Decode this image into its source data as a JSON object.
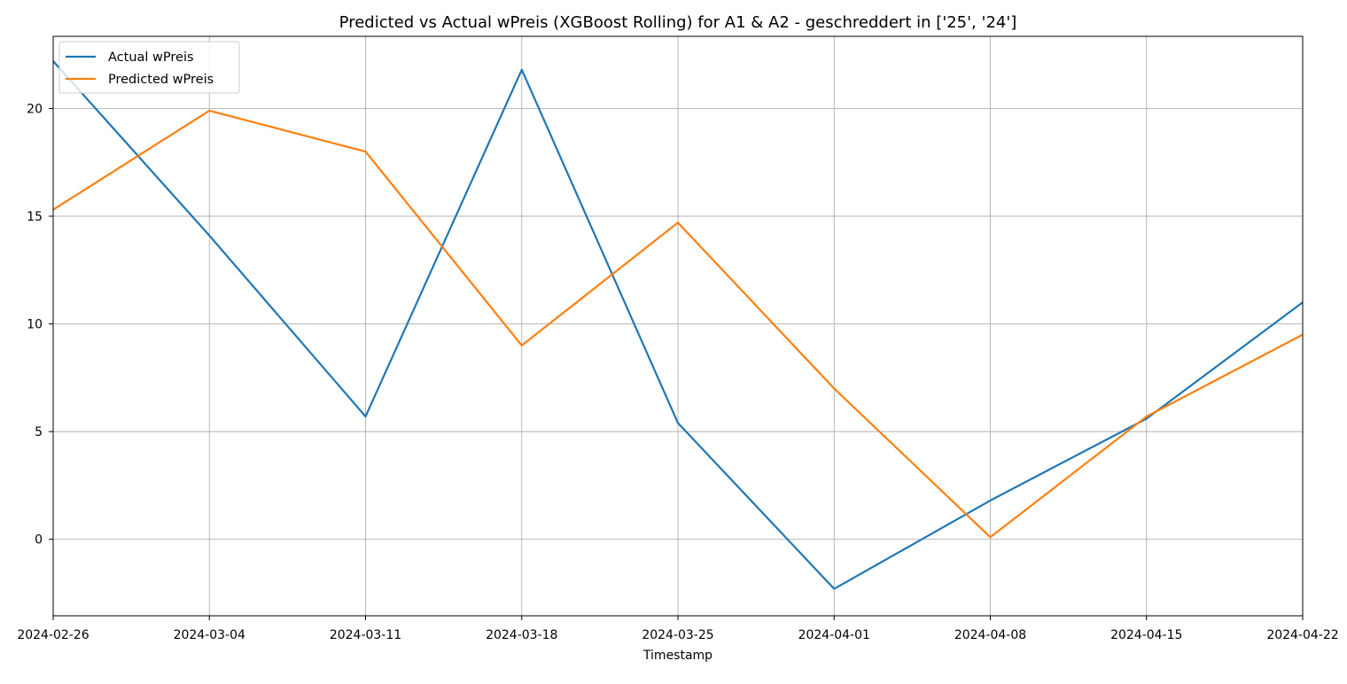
{
  "chart_data": {
    "type": "line",
    "title": "Predicted vs Actual wPreis (XGBoost Rolling) for A1 & A2 -  geschreddert in ['25', '24']",
    "xlabel": "Timestamp",
    "ylabel": "",
    "x": [
      "2024-02-26",
      "2024-03-04",
      "2024-03-11",
      "2024-03-18",
      "2024-03-25",
      "2024-04-01",
      "2024-04-08",
      "2024-04-15",
      "2024-04-22"
    ],
    "xticks": [
      "2024-02-26",
      "2024-03-04",
      "2024-03-11",
      "2024-03-18",
      "2024-03-25",
      "2024-04-01",
      "2024-04-08",
      "2024-04-15",
      "2024-04-22"
    ],
    "yticks": [
      0,
      5,
      10,
      15,
      20
    ],
    "ylim": [
      -3.55,
      23.35
    ],
    "grid": true,
    "legend_position": "upper left",
    "series": [
      {
        "name": "Actual wPreis",
        "color": "#1f77b4",
        "values": [
          22.2,
          14.1,
          5.7,
          21.8,
          5.4,
          -2.3,
          1.8,
          5.6,
          11.0
        ]
      },
      {
        "name": "Predicted wPreis",
        "color": "#ff7f0e",
        "values": [
          15.3,
          19.9,
          18.0,
          9.0,
          14.7,
          7.0,
          0.1,
          5.7,
          9.5
        ]
      }
    ]
  }
}
